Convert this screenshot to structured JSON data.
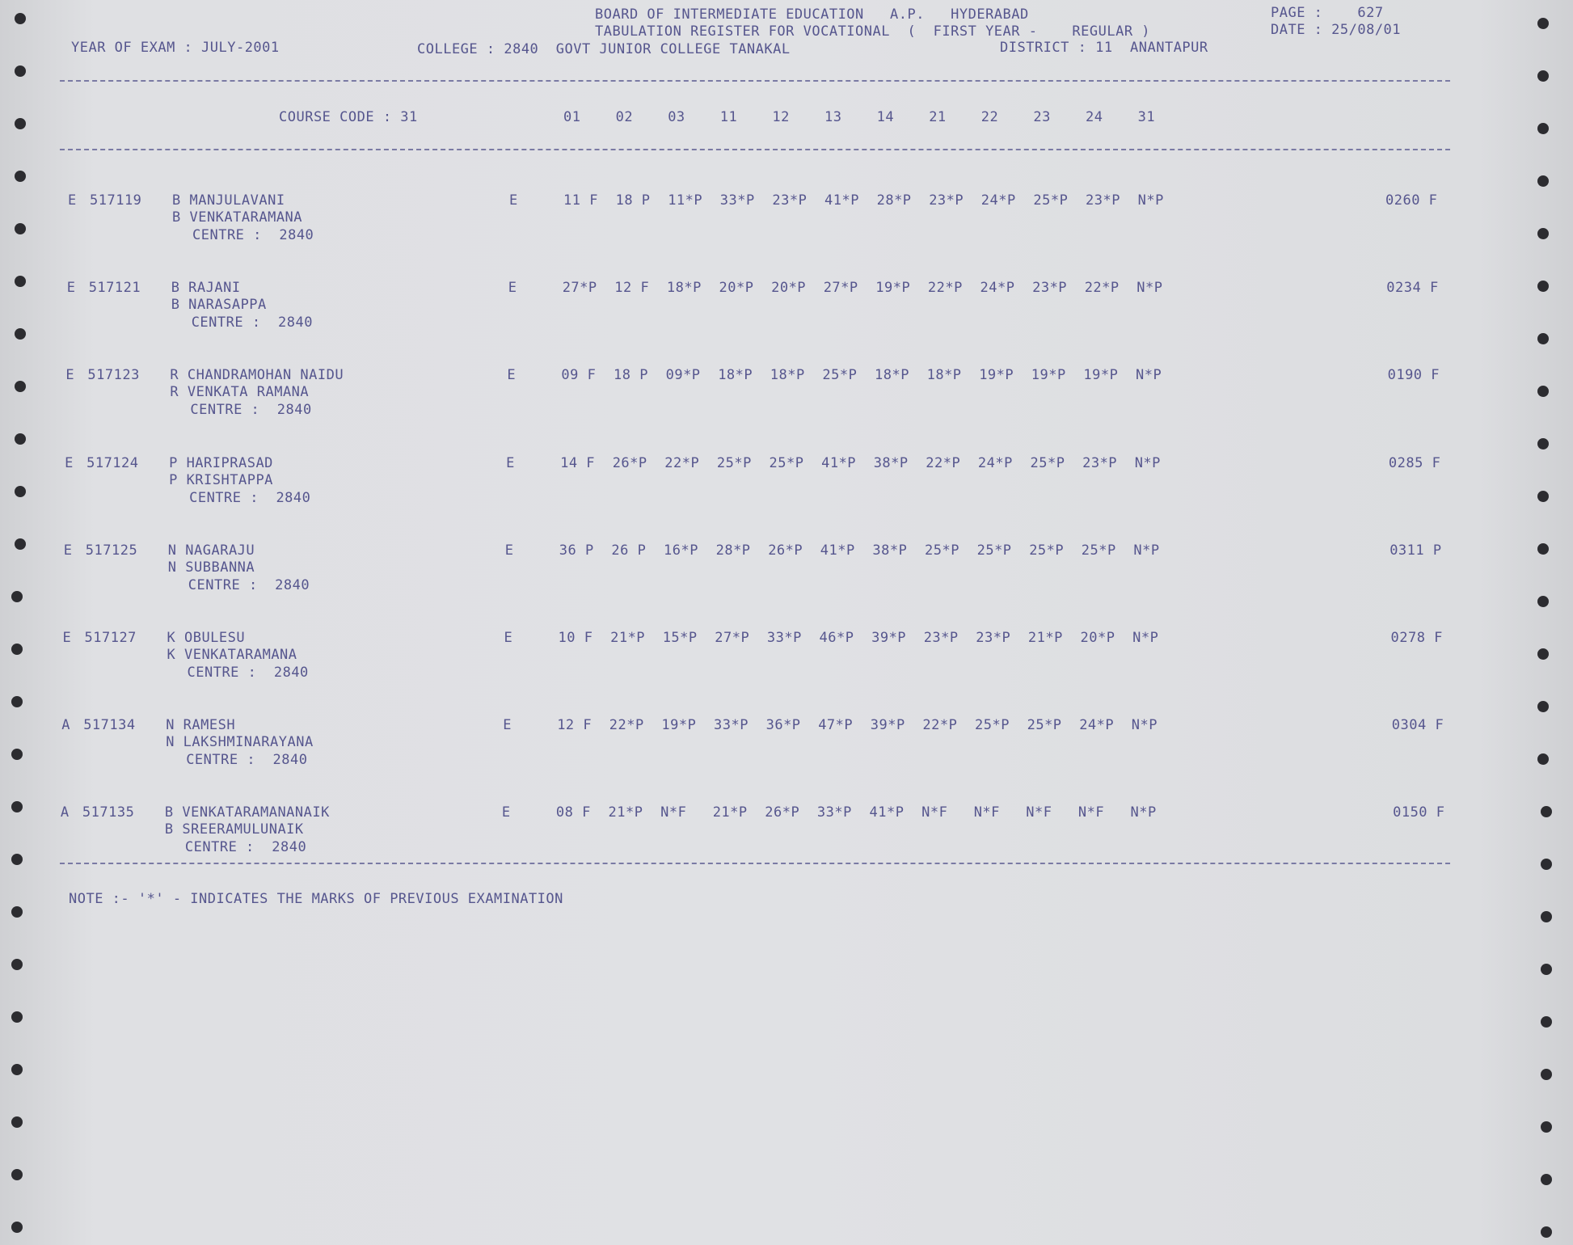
{
  "header": {
    "board": "BOARD OF INTERMEDIATE EDUCATION   A.P.   HYDERABAD",
    "register": "TABULATION REGISTER FOR VOCATIONAL  (  FIRST YEAR -    REGULAR )",
    "year_of_exam": "YEAR OF EXAM : JULY-2001",
    "college": "COLLEGE : 2840  GOVT JUNIOR COLLEGE TANAKAL",
    "district": "DISTRICT : 11  ANANTAPUR",
    "page": "PAGE :    627",
    "date": "DATE : 25/08/01"
  },
  "course_code": "COURSE CODE : 31",
  "subject_codes": [
    "01",
    "02",
    "03",
    "11",
    "12",
    "13",
    "14",
    "21",
    "22",
    "23",
    "24",
    "31"
  ],
  "records": [
    {
      "cat": "E",
      "roll": "517119",
      "name": "B MANJULAVANI",
      "parent": "B VENKATARAMANA",
      "centre": "CENTRE :  2840",
      "medium": "E",
      "marks": [
        "11 F",
        "18 P",
        "11*P",
        "33*P",
        "23*P",
        "41*P",
        "28*P",
        "23*P",
        "24*P",
        "25*P",
        "23*P",
        "N*P"
      ],
      "total": "0260 F"
    },
    {
      "cat": "E",
      "roll": "517121",
      "name": "B RAJANI",
      "parent": "B NARASAPPA",
      "centre": "CENTRE :  2840",
      "medium": "E",
      "marks": [
        "27*P",
        "12 F",
        "18*P",
        "20*P",
        "20*P",
        "27*P",
        "19*P",
        "22*P",
        "24*P",
        "23*P",
        "22*P",
        "N*P"
      ],
      "total": "0234 F"
    },
    {
      "cat": "E",
      "roll": "517123",
      "name": "R CHANDRAMOHAN NAIDU",
      "parent": "R VENKATA RAMANA",
      "centre": "CENTRE :  2840",
      "medium": "E",
      "marks": [
        "09 F",
        "18 P",
        "09*P",
        "18*P",
        "18*P",
        "25*P",
        "18*P",
        "18*P",
        "19*P",
        "19*P",
        "19*P",
        "N*P"
      ],
      "total": "0190 F"
    },
    {
      "cat": "E",
      "roll": "517124",
      "name": "P HARIPRASAD",
      "parent": "P KRISHTAPPA",
      "centre": "CENTRE :  2840",
      "medium": "E",
      "marks": [
        "14 F",
        "26*P",
        "22*P",
        "25*P",
        "25*P",
        "41*P",
        "38*P",
        "22*P",
        "24*P",
        "25*P",
        "23*P",
        "N*P"
      ],
      "total": "0285 F"
    },
    {
      "cat": "E",
      "roll": "517125",
      "name": "N NAGARAJU",
      "parent": "N SUBBANNA",
      "centre": "CENTRE :  2840",
      "medium": "E",
      "marks": [
        "36 P",
        "26 P",
        "16*P",
        "28*P",
        "26*P",
        "41*P",
        "38*P",
        "25*P",
        "25*P",
        "25*P",
        "25*P",
        "N*P"
      ],
      "total": "0311 P"
    },
    {
      "cat": "E",
      "roll": "517127",
      "name": "K OBULESU",
      "parent": "K VENKATARAMANA",
      "centre": "CENTRE :  2840",
      "medium": "E",
      "marks": [
        "10 F",
        "21*P",
        "15*P",
        "27*P",
        "33*P",
        "46*P",
        "39*P",
        "23*P",
        "23*P",
        "21*P",
        "20*P",
        "N*P"
      ],
      "total": "0278 F"
    },
    {
      "cat": "A",
      "roll": "517134",
      "name": "N RAMESH",
      "parent": "N LAKSHMINARAYANA",
      "centre": "CENTRE :  2840",
      "medium": "E",
      "marks": [
        "12 F",
        "22*P",
        "19*P",
        "33*P",
        "36*P",
        "47*P",
        "39*P",
        "22*P",
        "25*P",
        "25*P",
        "24*P",
        "N*P"
      ],
      "total": "0304 F"
    },
    {
      "cat": "A",
      "roll": "517135",
      "name": "B VENKATARAMANANAIK",
      "parent": "B SREERAMULUNAIK",
      "centre": "CENTRE :  2840",
      "medium": "E",
      "marks": [
        "08 F",
        "21*P",
        "N*F",
        "21*P",
        "26*P",
        "33*P",
        "41*P",
        "N*F",
        "N*F",
        "N*F",
        "N*F",
        "N*P"
      ],
      "total": "0150 F"
    }
  ],
  "note": "NOTE :- '*' - INDICATES THE MARKS OF PREVIOUS EXAMINATION",
  "colors": {
    "ink": "#56568e",
    "paper": "#dcdde0"
  }
}
